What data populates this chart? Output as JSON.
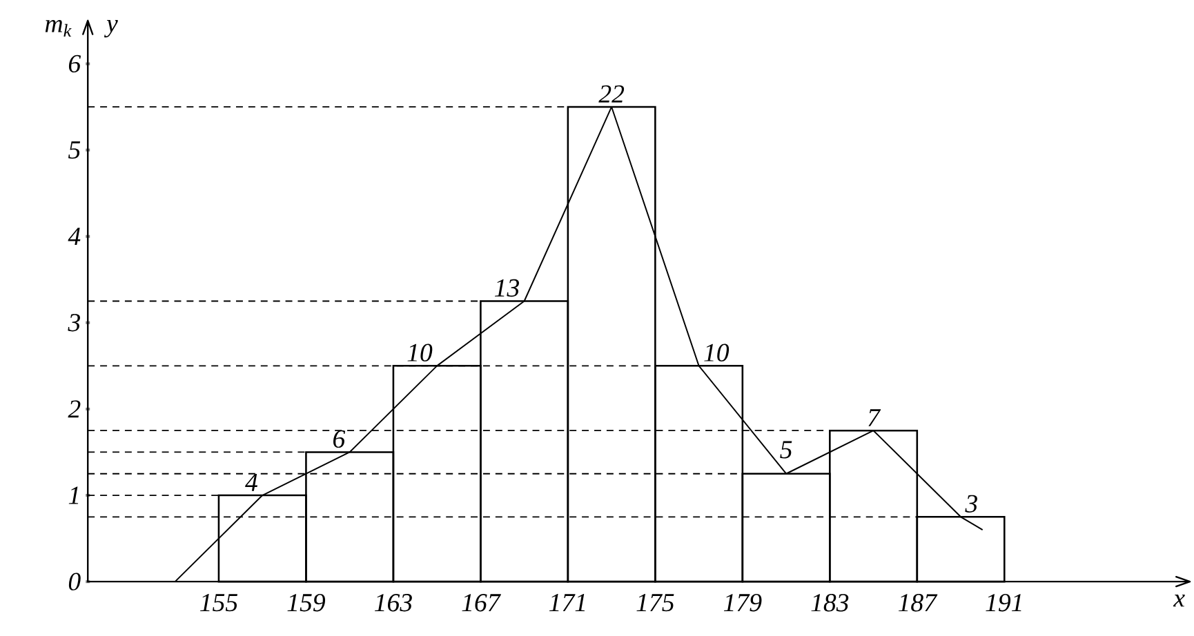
{
  "chart_data": {
    "type": "histogram",
    "xlabel": "x",
    "ylabel": "m$_{k}$",
    "annotations": [
      "y",
      {
        "text": "4",
        "x": 157,
        "y": 1
      },
      {
        "text": "6",
        "x": 161,
        "y": 1.5
      },
      {
        "text": "10",
        "x": 165,
        "y": 2.5
      },
      {
        "text": "13",
        "x": 169,
        "y": 3.25
      },
      {
        "text": "22",
        "x": 173,
        "y": 5.5
      },
      {
        "text": "10",
        "x": 177,
        "y": 2.5
      },
      {
        "text": "5",
        "x": 181,
        "y": 1.25
      },
      {
        "text": "7",
        "x": 185,
        "y": 1.75
      },
      {
        "text": "3",
        "x": 189,
        "y": 0.75
      }
    ],
    "xlim": [
      149,
      199.5
    ],
    "ylim": [
      0,
      6.5
    ],
    "xticks": [
      155,
      159,
      163,
      167,
      171,
      175,
      179,
      183,
      187,
      191
    ],
    "yticks": [
      0,
      1,
      2,
      3,
      4,
      5,
      6
    ],
    "series": [
      {
        "bins": [
          155,
          159,
          163,
          167,
          171,
          175,
          179,
          183,
          187,
          191
        ],
        "values": [
          1,
          1.5,
          2.5,
          3.25,
          5.5,
          2.5,
          1.25,
          1.75,
          0.75
        ],
        "color": "#000000"
      },
      {
        "type": "line",
        "x": [
          153,
          157,
          161,
          165,
          169,
          173,
          177,
          181,
          185,
          189,
          190
        ],
        "values": [
          0,
          1,
          1.5,
          2.5,
          3.25,
          5.5,
          2.5,
          1.25,
          1.75,
          0.75,
          0.6
        ],
        "color": "#000000"
      }
    ],
    "ref_lines": [
      {
        "axis": "y",
        "value": 5.5,
        "line_style": "dashed"
      },
      {
        "axis": "y",
        "value": 3.25,
        "line_style": "dashed"
      },
      {
        "axis": "y",
        "value": 2.5,
        "line_style": "dashed"
      },
      {
        "axis": "y",
        "value": 1.75,
        "line_style": "dashed"
      },
      {
        "axis": "y",
        "value": 1.5,
        "line_style": "dashed"
      },
      {
        "axis": "y",
        "value": 1.25,
        "line_style": "dashed"
      },
      {
        "axis": "y",
        "value": 1,
        "line_style": "dashed"
      },
      {
        "axis": "y",
        "value": 0.75,
        "line_style": "dashed"
      }
    ]
  }
}
